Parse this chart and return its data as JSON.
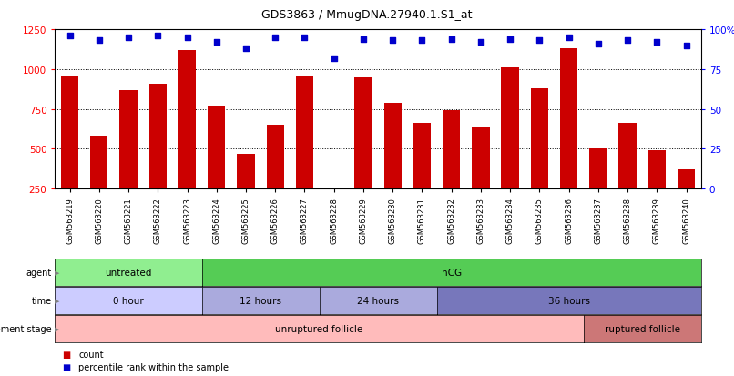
{
  "title": "GDS3863 / MmugDNA.27940.1.S1_at",
  "samples": [
    "GSM563219",
    "GSM563220",
    "GSM563221",
    "GSM563222",
    "GSM563223",
    "GSM563224",
    "GSM563225",
    "GSM563226",
    "GSM563227",
    "GSM563228",
    "GSM563229",
    "GSM563230",
    "GSM563231",
    "GSM563232",
    "GSM563233",
    "GSM563234",
    "GSM563235",
    "GSM563236",
    "GSM563237",
    "GSM563238",
    "GSM563239",
    "GSM563240"
  ],
  "counts": [
    960,
    580,
    870,
    910,
    1120,
    770,
    470,
    650,
    960,
    230,
    950,
    790,
    660,
    740,
    640,
    1010,
    880,
    1130,
    500,
    660,
    490,
    370
  ],
  "percentile": [
    96,
    93,
    95,
    96,
    95,
    92,
    88,
    95,
    95,
    82,
    94,
    93,
    93,
    94,
    92,
    94,
    93,
    95,
    91,
    93,
    92,
    90
  ],
  "bar_color": "#cc0000",
  "dot_color": "#0000cc",
  "ylim_left": [
    250,
    1250
  ],
  "ylim_right": [
    0,
    100
  ],
  "yticks_left": [
    250,
    500,
    750,
    1000,
    1250
  ],
  "yticks_right": [
    0,
    25,
    50,
    75,
    100
  ],
  "grid_values": [
    500,
    750,
    1000
  ],
  "agent_groups": [
    {
      "label": "untreated",
      "start": 0,
      "end": 5,
      "color": "#90ee90"
    },
    {
      "label": "hCG",
      "start": 5,
      "end": 22,
      "color": "#55cc55"
    }
  ],
  "time_groups": [
    {
      "label": "0 hour",
      "start": 0,
      "end": 5,
      "color": "#ccccff"
    },
    {
      "label": "12 hours",
      "start": 5,
      "end": 9,
      "color": "#aaaadd"
    },
    {
      "label": "24 hours",
      "start": 9,
      "end": 13,
      "color": "#aaaadd"
    },
    {
      "label": "36 hours",
      "start": 13,
      "end": 22,
      "color": "#7777bb"
    }
  ],
  "dev_groups": [
    {
      "label": "unruptured follicle",
      "start": 0,
      "end": 18,
      "color": "#ffbbbb"
    },
    {
      "label": "ruptured follicle",
      "start": 18,
      "end": 22,
      "color": "#cc7777"
    }
  ],
  "legend_items": [
    {
      "color": "#cc0000",
      "label": "count"
    },
    {
      "color": "#0000cc",
      "label": "percentile rank within the sample"
    }
  ]
}
